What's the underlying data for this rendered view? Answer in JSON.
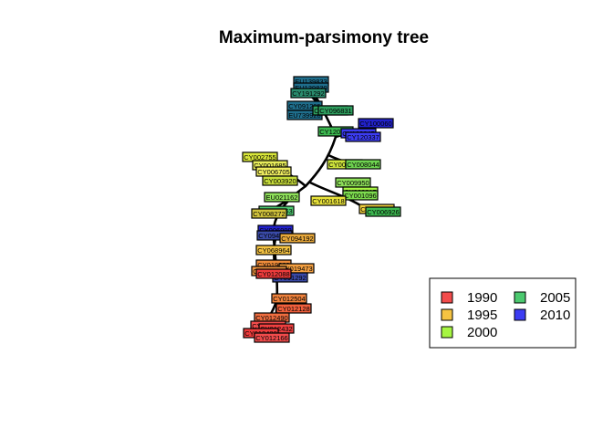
{
  "title": "Maximum-parsimony tree",
  "colors": {
    "1990": "#f24c4c",
    "1995": "#f5c342",
    "2000": "#a6f542",
    "2005": "#4cc96f",
    "2010": "#3c3cf2"
  },
  "legend": {
    "items": [
      {
        "label": "1990",
        "color": "#f24c4c"
      },
      {
        "label": "1995",
        "color": "#f5c342"
      },
      {
        "label": "2000",
        "color": "#a6f542"
      },
      {
        "label": "2005",
        "color": "#4cc96f"
      },
      {
        "label": "2010",
        "color": "#3c3cf2"
      }
    ]
  },
  "tips": [
    {
      "label": "EU139833",
      "color": "#1f6e8c"
    },
    {
      "label": "EU139830",
      "color": "#1f6e8c"
    },
    {
      "label": "CY191292",
      "color": "#2a8c6e"
    },
    {
      "label": "CY091295",
      "color": "#1f6e8c"
    },
    {
      "label": "EU739928",
      "color": "#1f6e8c"
    },
    {
      "label": "CY096833",
      "color": "#2e9e5e"
    },
    {
      "label": "CY096831",
      "color": "#2e9e5e"
    },
    {
      "label": "CY100060",
      "color": "#2222cc"
    },
    {
      "label": "CY120340",
      "color": "#3cb850"
    },
    {
      "label": "CY120345",
      "color": "#3c3cf2"
    },
    {
      "label": "CY120337",
      "color": "#3c3cf2"
    },
    {
      "label": "CY002755",
      "color": "#d8e63a"
    },
    {
      "label": "CY001685",
      "color": "#e6ec5a"
    },
    {
      "label": "CY006705",
      "color": "#f0ee60"
    },
    {
      "label": "CY003920",
      "color": "#c6dc3a"
    },
    {
      "label": "CY001416",
      "color": "#cfe43c"
    },
    {
      "label": "CY008044",
      "color": "#6fd450"
    },
    {
      "label": "CY009950",
      "color": "#8ee05a"
    },
    {
      "label": "CY002315",
      "color": "#a6f542"
    },
    {
      "label": "CY001096",
      "color": "#7ddc4e"
    },
    {
      "label": "EU021162",
      "color": "#8ee05a"
    },
    {
      "label": "CY001618",
      "color": "#e8e23a"
    },
    {
      "label": "CY002364",
      "color": "#f0cf3c"
    },
    {
      "label": "CY006926",
      "color": "#3cb850"
    },
    {
      "label": "CY006963",
      "color": "#4cc96f"
    },
    {
      "label": "CY008272",
      "color": "#d0c23c"
    },
    {
      "label": "CY006999",
      "color": "#2222cc"
    },
    {
      "label": "CY094183",
      "color": "#3a4aa8"
    },
    {
      "label": "CY094192",
      "color": "#e8a83a"
    },
    {
      "label": "CY068964",
      "color": "#f5c342"
    },
    {
      "label": "CY019328",
      "color": "#ee8c3a"
    },
    {
      "label": "CY019473",
      "color": "#f5a040"
    },
    {
      "label": "CY010748",
      "color": "#f09640"
    },
    {
      "label": "CY091292",
      "color": "#3a4aa8"
    },
    {
      "label": "CY012504",
      "color": "#f0823c"
    },
    {
      "label": "CY012128",
      "color": "#f2603c"
    },
    {
      "label": "CY012490",
      "color": "#f06e40"
    },
    {
      "label": "CY012160",
      "color": "#f24c4c"
    },
    {
      "label": "CY012432",
      "color": "#f04040"
    },
    {
      "label": "CY012488",
      "color": "#ee3c3c"
    },
    {
      "label": "CY012166",
      "color": "#f24c4c"
    },
    {
      "label": "CY012088",
      "color": "#ee3c3c"
    }
  ]
}
